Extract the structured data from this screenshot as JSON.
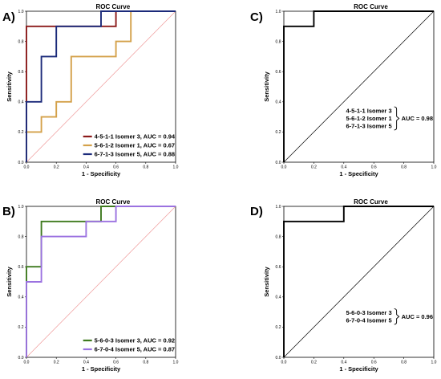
{
  "chart_data": [
    {
      "panel": "A)",
      "type": "line",
      "title": "ROC Curve",
      "xlabel": "1 - Specificity",
      "ylabel": "Sensitivity",
      "xlim": [
        0,
        1
      ],
      "ylim": [
        0,
        1
      ],
      "xticks": [
        "0.0",
        "0.2",
        "0.4",
        "0.6",
        "0.8",
        "1.0"
      ],
      "yticks": [
        "0.0",
        "0.2",
        "0.4",
        "0.6",
        "0.8",
        "1.0"
      ],
      "diagonal_color": "#ef9a9a",
      "legend_position": "bottom-right",
      "series": [
        {
          "name": "4-5-1-1 Isomer 3, AUC = 0.94",
          "color": "#8b1a1a",
          "x": [
            0,
            0,
            0.6,
            0.6,
            1
          ],
          "y": [
            0,
            0.9,
            0.9,
            1,
            1
          ]
        },
        {
          "name": "5-6-1-2 Isomer 1, AUC = 0.67",
          "color": "#d4a14a",
          "x": [
            0,
            0,
            0.1,
            0.1,
            0.2,
            0.2,
            0.3,
            0.3,
            0.6,
            0.6,
            0.7,
            0.7,
            1
          ],
          "y": [
            0,
            0.2,
            0.2,
            0.3,
            0.3,
            0.4,
            0.4,
            0.7,
            0.7,
            0.8,
            0.8,
            1,
            1
          ]
        },
        {
          "name": "6-7-1-3 Isomer 5, AUC = 0.88",
          "color": "#1b2a7a",
          "x": [
            0,
            0,
            0.1,
            0.1,
            0.2,
            0.2,
            0.5,
            0.5,
            1
          ],
          "y": [
            0,
            0.4,
            0.4,
            0.7,
            0.7,
            0.9,
            0.9,
            1,
            1
          ]
        }
      ]
    },
    {
      "panel": "C)",
      "type": "line",
      "title": "ROC Curve",
      "xlabel": "1 - Specificity",
      "ylabel": "Sensitivity",
      "xlim": [
        0,
        1
      ],
      "ylim": [
        0,
        1
      ],
      "xticks": [
        "0.0",
        "0.2",
        "0.4",
        "0.6",
        "0.8",
        "1.0"
      ],
      "yticks": [
        "0.0",
        "0.2",
        "0.4",
        "0.6",
        "0.8",
        "1.0"
      ],
      "diagonal_color": "#000000",
      "legend_position": "center-right",
      "series": [
        {
          "color": "#000000",
          "x": [
            0,
            0,
            0.2,
            0.2,
            1
          ],
          "y": [
            0,
            0.9,
            0.9,
            1,
            1
          ]
        }
      ],
      "bracket": {
        "items": [
          "4-5-1-1 Isomer 3",
          "5-6-1-2 Isomer 1",
          "6-7-1-3 Isomer 5"
        ],
        "label": "AUC = 0.98"
      }
    },
    {
      "panel": "B)",
      "type": "line",
      "title": "ROC Curve",
      "xlabel": "1 - Specificity",
      "ylabel": "Sensitivity",
      "xlim": [
        0,
        1
      ],
      "ylim": [
        0,
        1
      ],
      "xticks": [
        "0.0",
        "0.2",
        "0.4",
        "0.6",
        "0.8",
        "1.0"
      ],
      "yticks": [
        "0.0",
        "0.2",
        "0.4",
        "0.6",
        "0.8",
        "1.0"
      ],
      "diagonal_color": "#ef9a9a",
      "legend_position": "bottom-right",
      "series": [
        {
          "name": "5-6-0-3 Isomer 3, AUC = 0.92",
          "color": "#3f7a1f",
          "x": [
            0,
            0,
            0.1,
            0.1,
            0.5,
            0.5,
            1
          ],
          "y": [
            0,
            0.6,
            0.6,
            0.9,
            0.9,
            1,
            1
          ]
        },
        {
          "name": "6-7-0-4 Isomer 5, AUC = 0.87",
          "color": "#9b72e0",
          "x": [
            0,
            0,
            0.1,
            0.1,
            0.4,
            0.4,
            0.6,
            0.6,
            1
          ],
          "y": [
            0,
            0.5,
            0.5,
            0.8,
            0.8,
            0.9,
            0.9,
            1,
            1
          ]
        }
      ]
    },
    {
      "panel": "D)",
      "type": "line",
      "title": "ROC Curve",
      "xlabel": "1 - Specificity",
      "ylabel": "Sensitivity",
      "xlim": [
        0,
        1
      ],
      "ylim": [
        0,
        1
      ],
      "xticks": [
        "0.0",
        "0.2",
        "0.4",
        "0.6",
        "0.8",
        "1.0"
      ],
      "yticks": [
        "0.0",
        "0.2",
        "0.4",
        "0.6",
        "0.8",
        "1.0"
      ],
      "diagonal_color": "#000000",
      "legend_position": "center-right",
      "series": [
        {
          "color": "#000000",
          "x": [
            0,
            0,
            0.4,
            0.4,
            1
          ],
          "y": [
            0,
            0.9,
            0.9,
            1,
            1
          ]
        }
      ],
      "bracket": {
        "items": [
          "5-6-0-3 Isomer 3",
          "6-7-0-4 Isomer 5"
        ],
        "label": "AUC = 0.96"
      }
    }
  ]
}
